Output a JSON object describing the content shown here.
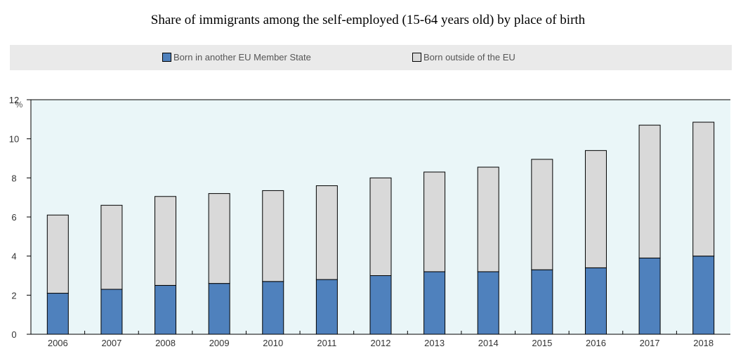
{
  "chart_data": {
    "type": "bar",
    "stacked": true,
    "title": "Share of immigrants among the self-employed (15-64 years old) by place of birth",
    "ylabel": "%",
    "xlabel": "",
    "ylim": [
      0,
      12
    ],
    "yticks": [
      0,
      2,
      4,
      6,
      8,
      10,
      12
    ],
    "grid": false,
    "legend_position": "top",
    "categories": [
      "2006",
      "2007",
      "2008",
      "2009",
      "2010",
      "2011",
      "2012",
      "2013",
      "2014",
      "2015",
      "2016",
      "2017",
      "2018"
    ],
    "series": [
      {
        "name": "Born in another EU Member State",
        "color": "#4f81bd",
        "values": [
          2.1,
          2.3,
          2.5,
          2.6,
          2.7,
          2.8,
          3.0,
          3.2,
          3.2,
          3.3,
          3.4,
          3.9,
          4.0
        ]
      },
      {
        "name": "Born outside of the EU",
        "color": "#d9d9d9",
        "values": [
          4.0,
          4.3,
          4.55,
          4.6,
          4.65,
          4.8,
          5.0,
          5.1,
          5.35,
          5.65,
          6.0,
          6.8,
          6.85
        ]
      }
    ],
    "plot_background": "#eaf6f8"
  }
}
